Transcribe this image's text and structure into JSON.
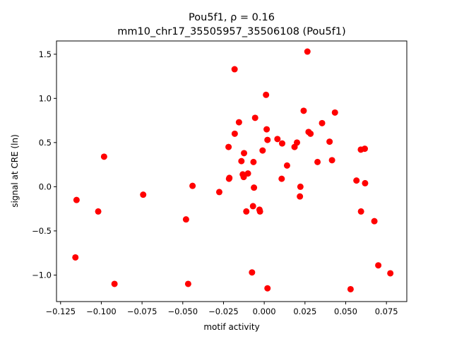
{
  "chart_data": {
    "type": "scatter",
    "title_line1": "Pou5f1, ρ = 0.16",
    "title_line2": "mm10_chr17_35505957_35506108 (Pou5f1)",
    "xlabel": "motif activity",
    "ylabel": "signal at CRE (ln)",
    "xlim": [
      -0.1275,
      0.0875
    ],
    "ylim": [
      -1.3,
      1.65
    ],
    "xticks": [
      -0.125,
      -0.1,
      -0.075,
      -0.05,
      -0.025,
      0.0,
      0.025,
      0.05,
      0.075
    ],
    "xtick_labels": [
      "−0.125",
      "−0.100",
      "−0.075",
      "−0.050",
      "−0.025",
      "0.000",
      "0.025",
      "0.050",
      "0.075"
    ],
    "yticks": [
      -1.0,
      -0.5,
      0.0,
      0.5,
      1.0,
      1.5
    ],
    "ytick_labels": [
      "−1.0",
      "−0.5",
      "0.0",
      "0.5",
      "1.0",
      "1.5"
    ],
    "marker_color": "#ff0000",
    "grid": false,
    "points": [
      {
        "x": -0.1159,
        "y": -0.8
      },
      {
        "x": -0.1152,
        "y": -0.15
      },
      {
        "x": -0.1019,
        "y": -0.28
      },
      {
        "x": -0.0983,
        "y": 0.34
      },
      {
        "x": -0.0919,
        "y": -1.1
      },
      {
        "x": -0.0743,
        "y": -0.09
      },
      {
        "x": -0.048,
        "y": -0.37
      },
      {
        "x": -0.0467,
        "y": -1.1
      },
      {
        "x": -0.044,
        "y": 0.01
      },
      {
        "x": -0.0276,
        "y": -0.06
      },
      {
        "x": -0.0219,
        "y": 0.45
      },
      {
        "x": -0.0216,
        "y": 0.09
      },
      {
        "x": -0.0214,
        "y": 0.1
      },
      {
        "x": -0.0182,
        "y": 1.33
      },
      {
        "x": -0.0181,
        "y": 0.6
      },
      {
        "x": -0.0155,
        "y": 0.73
      },
      {
        "x": -0.014,
        "y": 0.29
      },
      {
        "x": -0.0132,
        "y": 0.14
      },
      {
        "x": -0.0126,
        "y": 0.11
      },
      {
        "x": -0.0124,
        "y": 0.38
      },
      {
        "x": -0.011,
        "y": -0.28
      },
      {
        "x": -0.01,
        "y": 0.15
      },
      {
        "x": -0.0075,
        "y": -0.97
      },
      {
        "x": -0.0069,
        "y": -0.22
      },
      {
        "x": -0.0066,
        "y": 0.28
      },
      {
        "x": -0.0063,
        "y": -0.01
      },
      {
        "x": -0.0056,
        "y": 0.78
      },
      {
        "x": -0.0029,
        "y": -0.26
      },
      {
        "x": -0.0026,
        "y": -0.28
      },
      {
        "x": -0.001,
        "y": 0.41
      },
      {
        "x": 0.0011,
        "y": 1.04
      },
      {
        "x": 0.0015,
        "y": 0.65
      },
      {
        "x": 0.002,
        "y": 0.53
      },
      {
        "x": 0.002,
        "y": -1.15
      },
      {
        "x": 0.0081,
        "y": 0.54
      },
      {
        "x": 0.0107,
        "y": 0.09
      },
      {
        "x": 0.011,
        "y": 0.49
      },
      {
        "x": 0.014,
        "y": 0.24
      },
      {
        "x": 0.0186,
        "y": 0.45
      },
      {
        "x": 0.0201,
        "y": 0.5
      },
      {
        "x": 0.0219,
        "y": -0.11
      },
      {
        "x": 0.0222,
        "y": 0.0
      },
      {
        "x": 0.0242,
        "y": 0.86
      },
      {
        "x": 0.0265,
        "y": 1.53
      },
      {
        "x": 0.0272,
        "y": 0.62
      },
      {
        "x": 0.0284,
        "y": 0.6
      },
      {
        "x": 0.0327,
        "y": 0.28
      },
      {
        "x": 0.0355,
        "y": 0.72
      },
      {
        "x": 0.0401,
        "y": 0.51
      },
      {
        "x": 0.0416,
        "y": 0.3
      },
      {
        "x": 0.0434,
        "y": 0.84
      },
      {
        "x": 0.053,
        "y": -1.16
      },
      {
        "x": 0.0566,
        "y": 0.07
      },
      {
        "x": 0.0593,
        "y": 0.42
      },
      {
        "x": 0.0594,
        "y": -0.28
      },
      {
        "x": 0.0617,
        "y": 0.43
      },
      {
        "x": 0.0619,
        "y": 0.04
      },
      {
        "x": 0.0676,
        "y": -0.39
      },
      {
        "x": 0.07,
        "y": -0.89
      },
      {
        "x": 0.0774,
        "y": -0.98
      }
    ]
  }
}
